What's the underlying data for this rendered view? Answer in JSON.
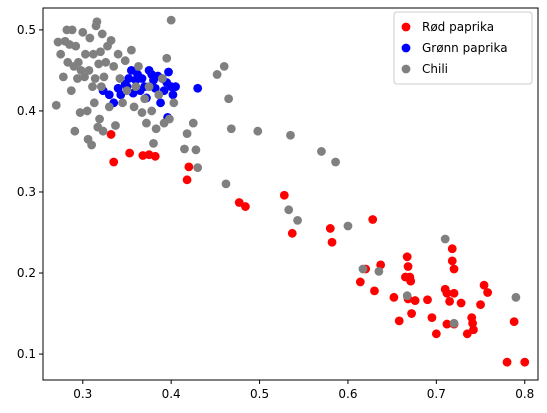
{
  "chart_data": {
    "type": "scatter",
    "xlim": [
      0.255,
      0.815
    ],
    "ylim": [
      0.068,
      0.527
    ],
    "x_ticks": [
      "0.3",
      "0.4",
      "0.5",
      "0.6",
      "0.7",
      "0.8"
    ],
    "y_ticks": [
      "0.1",
      "0.2",
      "0.3",
      "0.4",
      "0.5"
    ],
    "grid": false,
    "legend_position": "top-right",
    "series": [
      {
        "name": "Rød paprika",
        "color": "#ff0000",
        "points": [
          [
            0.332,
            0.371
          ],
          [
            0.335,
            0.337
          ],
          [
            0.353,
            0.348
          ],
          [
            0.368,
            0.345
          ],
          [
            0.375,
            0.346
          ],
          [
            0.382,
            0.344
          ],
          [
            0.418,
            0.315
          ],
          [
            0.42,
            0.331
          ],
          [
            0.477,
            0.287
          ],
          [
            0.484,
            0.282
          ],
          [
            0.528,
            0.296
          ],
          [
            0.537,
            0.249
          ],
          [
            0.58,
            0.255
          ],
          [
            0.582,
            0.238
          ],
          [
            0.628,
            0.266
          ],
          [
            0.614,
            0.189
          ],
          [
            0.62,
            0.205
          ],
          [
            0.63,
            0.178
          ],
          [
            0.637,
            0.21
          ],
          [
            0.652,
            0.17
          ],
          [
            0.658,
            0.141
          ],
          [
            0.665,
            0.195
          ],
          [
            0.667,
            0.22
          ],
          [
            0.668,
            0.208
          ],
          [
            0.67,
            0.195
          ],
          [
            0.671,
            0.19
          ],
          [
            0.668,
            0.168
          ],
          [
            0.672,
            0.15
          ],
          [
            0.676,
            0.166
          ],
          [
            0.69,
            0.167
          ],
          [
            0.695,
            0.145
          ],
          [
            0.7,
            0.125
          ],
          [
            0.71,
            0.18
          ],
          [
            0.712,
            0.175
          ],
          [
            0.715,
            0.165
          ],
          [
            0.712,
            0.137
          ],
          [
            0.718,
            0.23
          ],
          [
            0.718,
            0.215
          ],
          [
            0.72,
            0.205
          ],
          [
            0.72,
            0.175
          ],
          [
            0.72,
            0.137
          ],
          [
            0.728,
            0.163
          ],
          [
            0.735,
            0.125
          ],
          [
            0.74,
            0.145
          ],
          [
            0.741,
            0.138
          ],
          [
            0.742,
            0.13
          ],
          [
            0.75,
            0.161
          ],
          [
            0.754,
            0.185
          ],
          [
            0.758,
            0.176
          ],
          [
            0.78,
            0.09
          ],
          [
            0.788,
            0.14
          ],
          [
            0.8,
            0.09
          ]
        ]
      },
      {
        "name": "Grønn paprika",
        "color": "#0000ff",
        "points": [
          [
            0.323,
            0.425
          ],
          [
            0.33,
            0.42
          ],
          [
            0.335,
            0.41
          ],
          [
            0.34,
            0.428
          ],
          [
            0.343,
            0.42
          ],
          [
            0.348,
            0.433
          ],
          [
            0.35,
            0.43
          ],
          [
            0.352,
            0.44
          ],
          [
            0.355,
            0.45
          ],
          [
            0.357,
            0.422
          ],
          [
            0.36,
            0.438
          ],
          [
            0.362,
            0.445
          ],
          [
            0.365,
            0.425
          ],
          [
            0.367,
            0.44
          ],
          [
            0.37,
            0.43
          ],
          [
            0.372,
            0.416
          ],
          [
            0.375,
            0.45
          ],
          [
            0.378,
            0.445
          ],
          [
            0.38,
            0.438
          ],
          [
            0.382,
            0.428
          ],
          [
            0.385,
            0.443
          ],
          [
            0.388,
            0.41
          ],
          [
            0.39,
            0.44
          ],
          [
            0.392,
            0.425
          ],
          [
            0.395,
            0.435
          ],
          [
            0.397,
            0.448
          ],
          [
            0.4,
            0.43
          ],
          [
            0.402,
            0.42
          ],
          [
            0.405,
            0.43
          ],
          [
            0.396,
            0.392
          ],
          [
            0.43,
            0.428
          ]
        ]
      },
      {
        "name": "Chili",
        "color": "#808080",
        "points": [
          [
            0.27,
            0.407
          ],
          [
            0.272,
            0.485
          ],
          [
            0.275,
            0.47
          ],
          [
            0.278,
            0.442
          ],
          [
            0.28,
            0.486
          ],
          [
            0.282,
            0.5
          ],
          [
            0.283,
            0.46
          ],
          [
            0.285,
            0.482
          ],
          [
            0.287,
            0.425
          ],
          [
            0.288,
            0.5
          ],
          [
            0.29,
            0.455
          ],
          [
            0.291,
            0.375
          ],
          [
            0.292,
            0.48
          ],
          [
            0.294,
            0.44
          ],
          [
            0.295,
            0.46
          ],
          [
            0.297,
            0.398
          ],
          [
            0.298,
            0.45
          ],
          [
            0.3,
            0.497
          ],
          [
            0.302,
            0.442
          ],
          [
            0.303,
            0.47
          ],
          [
            0.305,
            0.4
          ],
          [
            0.306,
            0.365
          ],
          [
            0.307,
            0.45
          ],
          [
            0.308,
            0.49
          ],
          [
            0.31,
            0.358
          ],
          [
            0.311,
            0.43
          ],
          [
            0.312,
            0.47
          ],
          [
            0.313,
            0.41
          ],
          [
            0.314,
            0.44
          ],
          [
            0.315,
            0.505
          ],
          [
            0.316,
            0.51
          ],
          [
            0.317,
            0.38
          ],
          [
            0.318,
            0.458
          ],
          [
            0.319,
            0.39
          ],
          [
            0.32,
            0.473
          ],
          [
            0.321,
            0.43
          ],
          [
            0.322,
            0.495
          ],
          [
            0.323,
            0.375
          ],
          [
            0.324,
            0.442
          ],
          [
            0.326,
            0.46
          ],
          [
            0.328,
            0.48
          ],
          [
            0.33,
            0.405
          ],
          [
            0.332,
            0.487
          ],
          [
            0.335,
            0.455
          ],
          [
            0.337,
            0.382
          ],
          [
            0.34,
            0.47
          ],
          [
            0.342,
            0.44
          ],
          [
            0.345,
            0.41
          ],
          [
            0.348,
            0.462
          ],
          [
            0.35,
            0.425
          ],
          [
            0.355,
            0.475
          ],
          [
            0.358,
            0.405
          ],
          [
            0.36,
            0.43
          ],
          [
            0.363,
            0.455
          ],
          [
            0.367,
            0.398
          ],
          [
            0.37,
            0.415
          ],
          [
            0.372,
            0.385
          ],
          [
            0.375,
            0.43
          ],
          [
            0.378,
            0.4
          ],
          [
            0.38,
            0.36
          ],
          [
            0.383,
            0.378
          ],
          [
            0.386,
            0.42
          ],
          [
            0.39,
            0.44
          ],
          [
            0.392,
            0.385
          ],
          [
            0.395,
            0.465
          ],
          [
            0.398,
            0.39
          ],
          [
            0.4,
            0.512
          ],
          [
            0.403,
            0.41
          ],
          [
            0.415,
            0.353
          ],
          [
            0.418,
            0.372
          ],
          [
            0.425,
            0.385
          ],
          [
            0.428,
            0.352
          ],
          [
            0.43,
            0.33
          ],
          [
            0.452,
            0.445
          ],
          [
            0.46,
            0.455
          ],
          [
            0.462,
            0.31
          ],
          [
            0.465,
            0.415
          ],
          [
            0.468,
            0.378
          ],
          [
            0.498,
            0.375
          ],
          [
            0.533,
            0.278
          ],
          [
            0.535,
            0.37
          ],
          [
            0.543,
            0.265
          ],
          [
            0.57,
            0.35
          ],
          [
            0.586,
            0.337
          ],
          [
            0.6,
            0.258
          ],
          [
            0.617,
            0.205
          ],
          [
            0.635,
            0.202
          ],
          [
            0.667,
            0.172
          ],
          [
            0.71,
            0.242
          ],
          [
            0.72,
            0.138
          ],
          [
            0.79,
            0.17
          ]
        ]
      }
    ]
  }
}
